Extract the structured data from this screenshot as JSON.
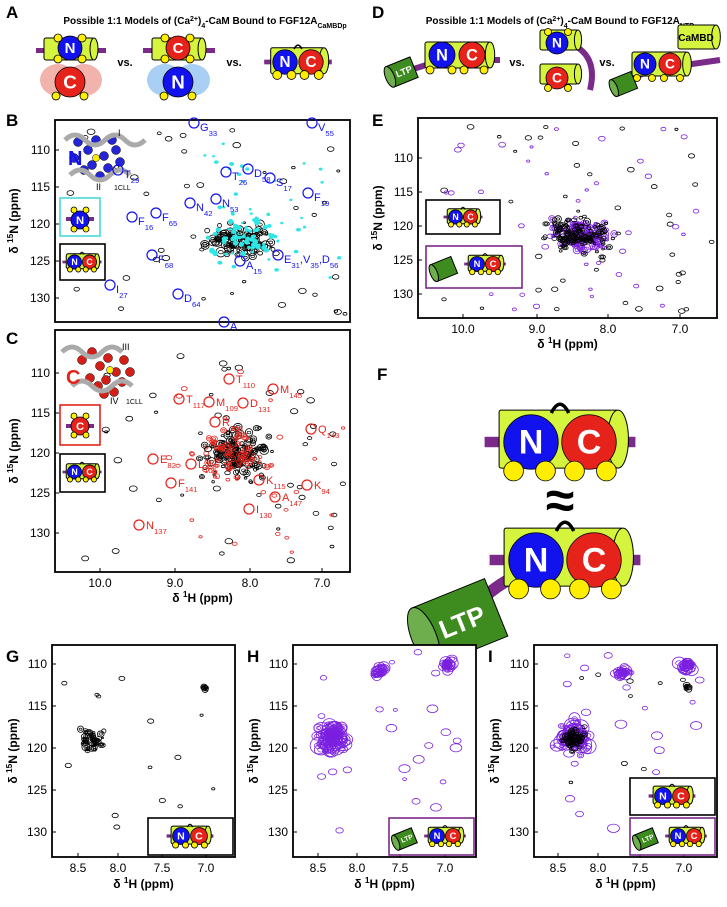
{
  "A": {
    "letter": "A",
    "title": [
      "Possible 1:1 Models of (Ca",
      "2+",
      ")",
      "4",
      "-CaM Bound to FGF12A",
      "CaMBDp"
    ],
    "separators": [
      "vs.",
      "vs."
    ],
    "models": [
      [
        "N",
        "C"
      ],
      [
        "C",
        "N"
      ],
      [
        "N",
        "C"
      ]
    ]
  },
  "D": {
    "letter": "D",
    "title": [
      "Possible 1:1 Models of (Ca",
      "2+",
      ")",
      "4",
      "-CaM Bound to FGF12A",
      "NTD"
    ],
    "separators": [
      "vs.",
      "vs."
    ],
    "models": [
      [
        "LTP",
        "N",
        "C"
      ],
      [
        "N",
        "C"
      ],
      [
        "N",
        "C",
        "CaMBD"
      ]
    ]
  },
  "B": {
    "letter": "B",
    "y_label": [
      "δ ",
      "15",
      "N (ppm)"
    ],
    "y_ticks": [
      "110",
      "115",
      "120",
      "125",
      "130"
    ],
    "structure": {
      "domain": "N",
      "helices": [
        "I",
        "II"
      ],
      "pdb": "1CLL"
    },
    "insets": [
      [
        "N"
      ],
      [
        "N",
        "C"
      ]
    ],
    "residues": [
      [
        "G",
        "33"
      ],
      [
        "V",
        "55"
      ],
      [
        "T",
        "29"
      ],
      [
        "T",
        "26"
      ],
      [
        "D",
        "58"
      ],
      [
        "S",
        "17"
      ],
      [
        "N",
        "42"
      ],
      [
        "N",
        "53"
      ],
      [
        "F",
        "19"
      ],
      [
        "F",
        "16"
      ],
      [
        "F",
        "65"
      ],
      [
        "F",
        "68"
      ],
      [
        "A",
        "15"
      ],
      [
        "E",
        "31",
        ",V",
        "35",
        ",D",
        "56"
      ],
      [
        "D",
        "64"
      ],
      [
        "I",
        "27"
      ],
      [
        "A",
        "57"
      ]
    ]
  },
  "E": {
    "letter": "E",
    "y_label": [
      "δ ",
      "15",
      "N (ppm)"
    ],
    "x_label": [
      "δ ",
      "1",
      "H (ppm)"
    ],
    "y_ticks": [
      "110",
      "115",
      "120",
      "125",
      "130"
    ],
    "x_ticks": [
      "10.0",
      "9.0",
      "8.0",
      "7.0"
    ],
    "insets": [
      [
        "N",
        "C"
      ],
      [
        "N",
        "C"
      ]
    ]
  },
  "C": {
    "letter": "C",
    "y_label": [
      "δ ",
      "15",
      "N (ppm)"
    ],
    "x_label": [
      "δ ",
      "1",
      "H (ppm)"
    ],
    "y_ticks": [
      "110",
      "115",
      "120",
      "125",
      "130"
    ],
    "x_ticks": [
      "10.0",
      "9.0",
      "8.0",
      "7.0"
    ],
    "structure": {
      "domain": "C",
      "helices": [
        "III",
        "IV"
      ],
      "pdb": "1CLL"
    },
    "insets": [
      [
        "C"
      ],
      [
        "N",
        "C"
      ]
    ],
    "residues": [
      [
        "T",
        "110"
      ],
      [
        "M",
        "145"
      ],
      [
        "T",
        "117"
      ],
      [
        "M",
        "109"
      ],
      [
        "D",
        "131"
      ],
      [
        "R",
        "106"
      ],
      [
        "Q",
        "143"
      ],
      [
        "E",
        "82"
      ],
      [
        "L",
        "105"
      ],
      [
        "K",
        "115"
      ],
      [
        "K",
        "94"
      ],
      [
        "F",
        "141"
      ],
      [
        "A",
        "147"
      ],
      [
        "I",
        "130"
      ],
      [
        "N",
        "137"
      ]
    ]
  },
  "F": {
    "letter": "F",
    "top": [
      "N",
      "C"
    ],
    "relation": "≈",
    "bottom": [
      "N",
      "C",
      "LTP"
    ]
  },
  "G": {
    "letter": "G",
    "y_label": [
      "δ ",
      "15",
      "N (ppm)"
    ],
    "x_label": [
      "δ ",
      "1",
      "H (ppm)"
    ],
    "y_ticks": [
      "110",
      "115",
      "120",
      "125",
      "130"
    ],
    "x_ticks": [
      "8.5",
      "8.0",
      "7.5",
      "7.0"
    ],
    "insets": [
      [
        "N",
        "C"
      ]
    ]
  },
  "H": {
    "letter": "H",
    "y_label": [
      "δ ",
      "15",
      "N (ppm)"
    ],
    "x_label": [
      "δ ",
      "1",
      "H (ppm)"
    ],
    "y_ticks": [
      "110",
      "115",
      "120",
      "125",
      "130"
    ],
    "x_ticks": [
      "8.5",
      "8.0",
      "7.5",
      "7.0"
    ],
    "insets": [
      [
        "LTP",
        "N",
        "C"
      ]
    ]
  },
  "I": {
    "letter": "I",
    "y_label": [
      "δ ",
      "15",
      "N (ppm)"
    ],
    "x_label": [
      "δ ",
      "1",
      "H (ppm)"
    ],
    "y_ticks": [
      "110",
      "115",
      "120",
      "125",
      "130"
    ],
    "x_ticks": [
      "8.5",
      "8.0",
      "7.5",
      "7.0"
    ],
    "insets": [
      [
        "N",
        "C"
      ],
      [
        "LTP",
        "N",
        "C"
      ]
    ]
  }
}
